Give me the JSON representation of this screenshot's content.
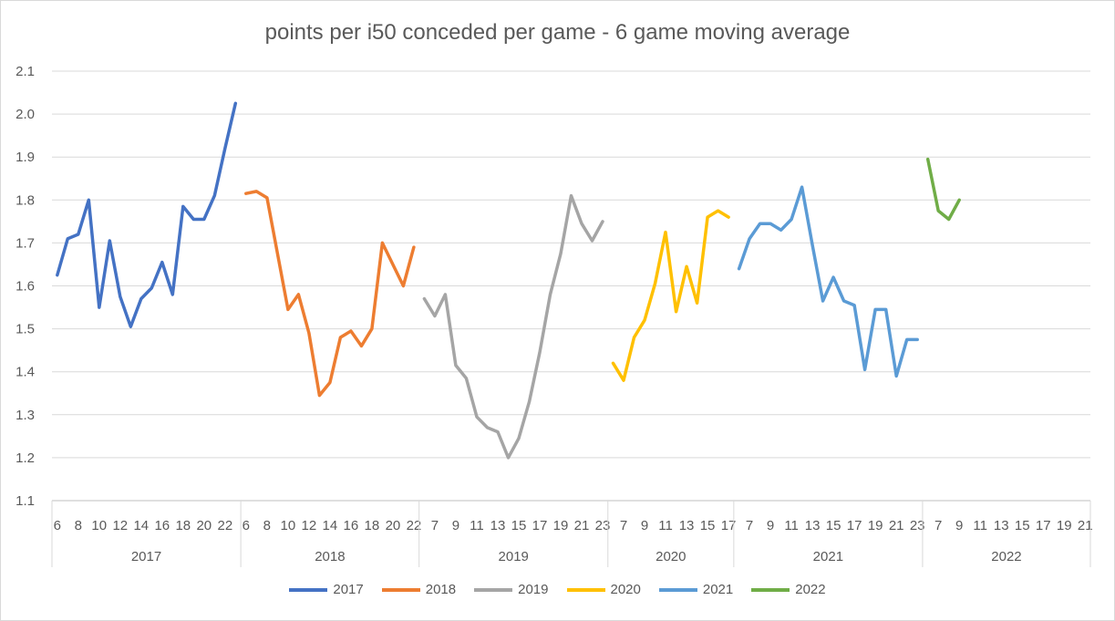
{
  "chart_data": {
    "type": "line",
    "title": "points per i50 conceded per game - 6 game moving average",
    "xlabel": "",
    "ylabel": "",
    "ylim": [
      1.1,
      2.1
    ],
    "yticks": [
      "1.1",
      "1.2",
      "1.3",
      "1.4",
      "1.5",
      "1.6",
      "1.7",
      "1.8",
      "1.9",
      "2.0",
      "2.1"
    ],
    "grid": true,
    "legend_position": "bottom",
    "groups": [
      {
        "label": "2017",
        "rounds": [
          "6",
          "7",
          "8",
          "9",
          "10",
          "11",
          "12",
          "13",
          "14",
          "15",
          "16",
          "17",
          "18",
          "19",
          "20",
          "21",
          "22",
          "23"
        ],
        "tick_labels": [
          "6",
          "",
          "8",
          "",
          "10",
          "",
          "12",
          "",
          "14",
          "",
          "16",
          "",
          "18",
          "",
          "20",
          "",
          "22",
          ""
        ]
      },
      {
        "label": "2018",
        "rounds": [
          "6",
          "7",
          "8",
          "9",
          "10",
          "11",
          "12",
          "13",
          "14",
          "15",
          "16",
          "17",
          "18",
          "19",
          "20",
          "21",
          "22"
        ],
        "tick_labels": [
          "6",
          "",
          "8",
          "",
          "10",
          "",
          "12",
          "",
          "14",
          "",
          "16",
          "",
          "18",
          "",
          "20",
          "",
          "22"
        ]
      },
      {
        "label": "2019",
        "rounds": [
          "6",
          "7",
          "8",
          "9",
          "10",
          "11",
          "12",
          "13",
          "14",
          "15",
          "16",
          "17",
          "18",
          "19",
          "20",
          "21",
          "22",
          "23"
        ],
        "tick_labels": [
          "",
          "7",
          "",
          "9",
          "",
          "11",
          "",
          "13",
          "",
          "15",
          "",
          "17",
          "",
          "19",
          "",
          "21",
          "",
          "23"
        ]
      },
      {
        "label": "2020",
        "rounds": [
          "6",
          "7",
          "8",
          "9",
          "10",
          "11",
          "12",
          "13",
          "14",
          "15",
          "16",
          "17"
        ],
        "tick_labels": [
          "",
          "7",
          "",
          "9",
          "",
          "11",
          "",
          "13",
          "",
          "15",
          "",
          "17"
        ]
      },
      {
        "label": "2021",
        "rounds": [
          "6",
          "7",
          "8",
          "9",
          "10",
          "11",
          "12",
          "13",
          "14",
          "15",
          "16",
          "17",
          "18",
          "19",
          "20",
          "21",
          "22",
          "23"
        ],
        "tick_labels": [
          "",
          "7",
          "",
          "9",
          "",
          "11",
          "",
          "13",
          "",
          "15",
          "",
          "17",
          "",
          "19",
          "",
          "21",
          "",
          "23"
        ]
      },
      {
        "label": "2022",
        "rounds": [
          "6",
          "7",
          "8",
          "9",
          "10",
          "11",
          "12",
          "13",
          "14",
          "15",
          "16",
          "17",
          "18",
          "19",
          "20",
          "21"
        ],
        "tick_labels": [
          "",
          "7",
          "",
          "9",
          "",
          "11",
          "",
          "13",
          "",
          "15",
          "",
          "17",
          "",
          "19",
          "",
          "21"
        ]
      }
    ],
    "series": [
      {
        "name": "2017",
        "color": "#4472c4",
        "values": [
          1.625,
          1.71,
          1.72,
          1.8,
          1.55,
          1.705,
          1.575,
          1.505,
          1.57,
          1.595,
          1.655,
          1.58,
          1.785,
          1.755,
          1.755,
          1.81,
          1.92,
          2.025
        ]
      },
      {
        "name": "2018",
        "color": "#ed7d31",
        "values": [
          1.815,
          1.82,
          1.805,
          1.675,
          1.545,
          1.58,
          1.49,
          1.345,
          1.375,
          1.48,
          1.495,
          1.46,
          1.5,
          1.7,
          1.65,
          1.6,
          1.69
        ]
      },
      {
        "name": "2019",
        "color": "#a5a5a5",
        "values": [
          1.57,
          1.53,
          1.58,
          1.415,
          1.385,
          1.295,
          1.27,
          1.26,
          1.2,
          1.245,
          1.33,
          1.445,
          1.58,
          1.675,
          1.81,
          1.745,
          1.705,
          1.75
        ]
      },
      {
        "name": "2020",
        "color": "#ffc000",
        "values": [
          1.42,
          1.38,
          1.48,
          1.52,
          1.605,
          1.725,
          1.54,
          1.645,
          1.56,
          1.76,
          1.775,
          1.76
        ]
      },
      {
        "name": "2021",
        "color": "#5b9bd5",
        "values": [
          1.64,
          1.71,
          1.745,
          1.745,
          1.73,
          1.755,
          1.83,
          1.695,
          1.565,
          1.62,
          1.565,
          1.555,
          1.405,
          1.545,
          1.545,
          1.39,
          1.475,
          1.475
        ]
      },
      {
        "name": "2022",
        "color": "#70ad47",
        "values": [
          1.895,
          1.775,
          1.755,
          1.8,
          null,
          null,
          null,
          null,
          null,
          null,
          null,
          null,
          null,
          null,
          null,
          null
        ]
      }
    ]
  }
}
